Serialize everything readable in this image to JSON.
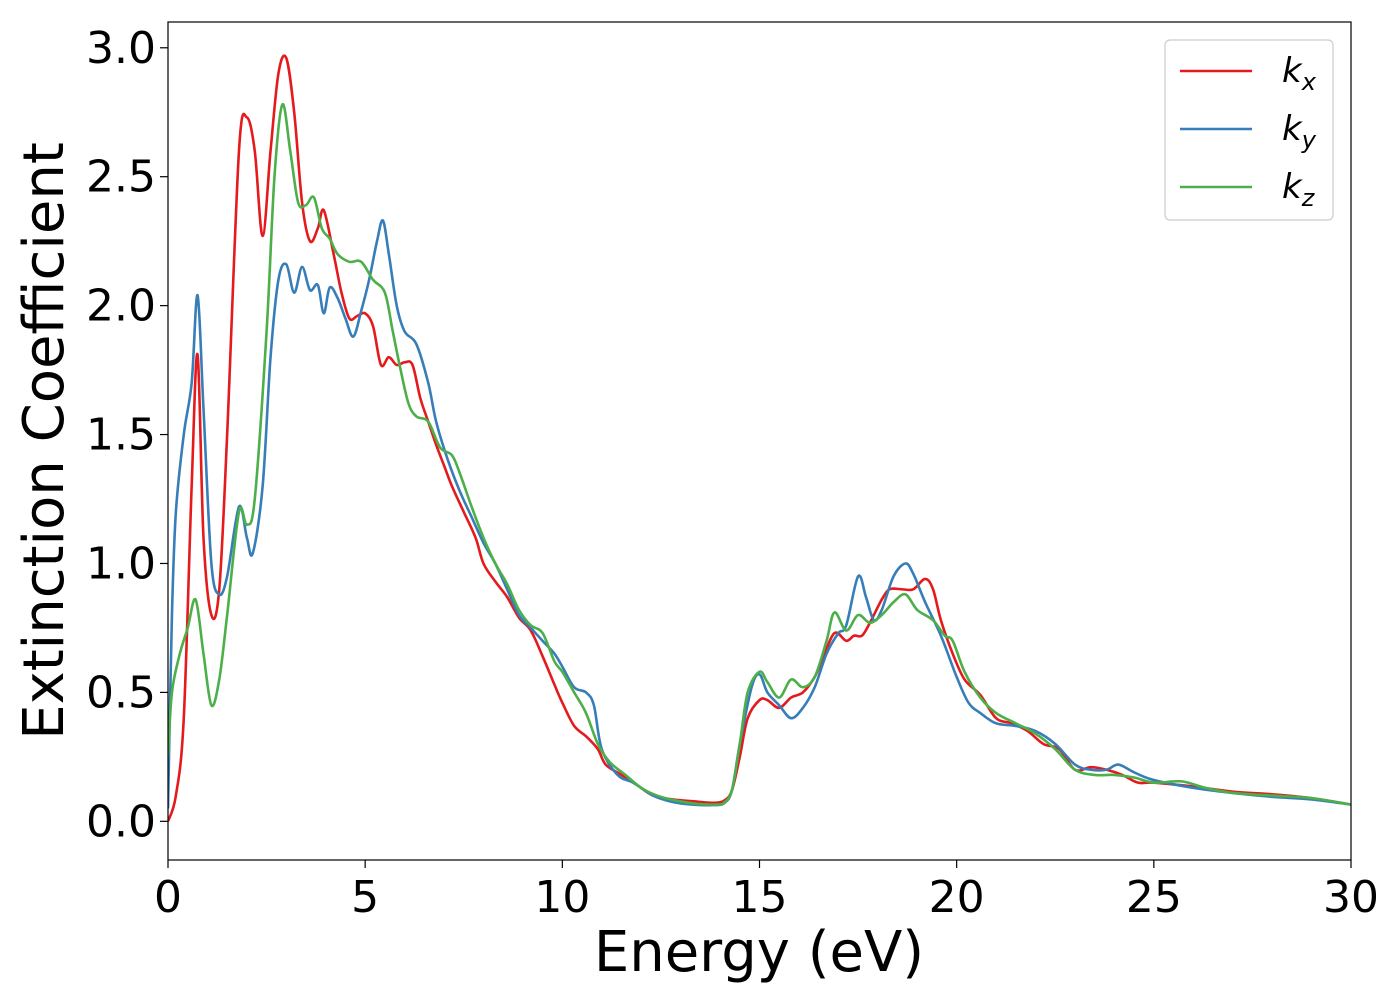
{
  "chart_data": {
    "type": "line",
    "title": "",
    "xlabel": "Energy (eV)",
    "ylabel": "Extinction Coefficient",
    "xlim": [
      0,
      30
    ],
    "ylim": [
      -0.15,
      3.1
    ],
    "xticks": [
      0,
      5,
      10,
      15,
      20,
      25,
      30
    ],
    "xtick_labels": [
      "0",
      "5",
      "10",
      "15",
      "20",
      "25",
      "30"
    ],
    "yticks": [
      0.0,
      0.5,
      1.0,
      1.5,
      2.0,
      2.5,
      3.0
    ],
    "ytick_labels": [
      "0.0",
      "0.5",
      "1.0",
      "1.5",
      "2.0",
      "2.5",
      "3.0"
    ],
    "grid": false,
    "legend_position": "top-right",
    "series": [
      {
        "name": "k",
        "subscript": "x",
        "color": "#e41a1c",
        "points": [
          [
            0,
            0.0
          ],
          [
            0.2,
            0.1
          ],
          [
            0.4,
            0.4
          ],
          [
            0.6,
            1.3
          ],
          [
            0.75,
            1.81
          ],
          [
            0.9,
            1.1
          ],
          [
            1.1,
            0.8
          ],
          [
            1.3,
            0.9
          ],
          [
            1.5,
            1.5
          ],
          [
            1.8,
            2.6
          ],
          [
            2.0,
            2.73
          ],
          [
            2.2,
            2.6
          ],
          [
            2.4,
            2.27
          ],
          [
            2.6,
            2.6
          ],
          [
            2.8,
            2.9
          ],
          [
            3.0,
            2.96
          ],
          [
            3.2,
            2.75
          ],
          [
            3.4,
            2.4
          ],
          [
            3.6,
            2.25
          ],
          [
            3.8,
            2.3
          ],
          [
            3.95,
            2.37
          ],
          [
            4.2,
            2.2
          ],
          [
            4.4,
            2.05
          ],
          [
            4.6,
            1.95
          ],
          [
            4.8,
            1.96
          ],
          [
            5.0,
            1.97
          ],
          [
            5.2,
            1.92
          ],
          [
            5.4,
            1.77
          ],
          [
            5.6,
            1.8
          ],
          [
            5.8,
            1.77
          ],
          [
            6.0,
            1.78
          ],
          [
            6.2,
            1.77
          ],
          [
            6.4,
            1.64
          ],
          [
            6.6,
            1.55
          ],
          [
            6.8,
            1.46
          ],
          [
            7.0,
            1.38
          ],
          [
            7.2,
            1.3
          ],
          [
            7.5,
            1.2
          ],
          [
            7.8,
            1.1
          ],
          [
            8.0,
            1.0
          ],
          [
            8.3,
            0.93
          ],
          [
            8.6,
            0.87
          ],
          [
            8.9,
            0.79
          ],
          [
            9.2,
            0.74
          ],
          [
            9.5,
            0.64
          ],
          [
            9.8,
            0.53
          ],
          [
            10.0,
            0.46
          ],
          [
            10.3,
            0.37
          ],
          [
            10.6,
            0.33
          ],
          [
            10.9,
            0.28
          ],
          [
            11.1,
            0.22
          ],
          [
            11.5,
            0.18
          ],
          [
            11.9,
            0.14
          ],
          [
            12.3,
            0.1
          ],
          [
            12.8,
            0.085
          ],
          [
            13.3,
            0.078
          ],
          [
            13.8,
            0.072
          ],
          [
            14.1,
            0.08
          ],
          [
            14.3,
            0.12
          ],
          [
            14.5,
            0.25
          ],
          [
            14.7,
            0.4
          ],
          [
            15.0,
            0.47
          ],
          [
            15.2,
            0.47
          ],
          [
            15.5,
            0.44
          ],
          [
            15.8,
            0.48
          ],
          [
            16.1,
            0.5
          ],
          [
            16.4,
            0.56
          ],
          [
            16.6,
            0.63
          ],
          [
            16.9,
            0.73
          ],
          [
            17.2,
            0.7
          ],
          [
            17.4,
            0.72
          ],
          [
            17.6,
            0.72
          ],
          [
            17.8,
            0.77
          ],
          [
            18.1,
            0.86
          ],
          [
            18.3,
            0.9
          ],
          [
            18.6,
            0.9
          ],
          [
            18.9,
            0.9
          ],
          [
            19.2,
            0.94
          ],
          [
            19.4,
            0.9
          ],
          [
            19.6,
            0.78
          ],
          [
            19.9,
            0.65
          ],
          [
            20.2,
            0.55
          ],
          [
            20.6,
            0.49
          ],
          [
            21.0,
            0.4
          ],
          [
            21.4,
            0.38
          ],
          [
            21.8,
            0.35
          ],
          [
            22.2,
            0.3
          ],
          [
            22.6,
            0.28
          ],
          [
            23.0,
            0.2
          ],
          [
            23.4,
            0.21
          ],
          [
            23.8,
            0.2
          ],
          [
            24.2,
            0.18
          ],
          [
            24.6,
            0.15
          ],
          [
            25.0,
            0.15
          ],
          [
            26.0,
            0.135
          ],
          [
            27.0,
            0.115
          ],
          [
            28.0,
            0.105
          ],
          [
            29.0,
            0.09
          ],
          [
            30.0,
            0.065
          ]
        ]
      },
      {
        "name": "k",
        "subscript": "y",
        "color": "#377eb8",
        "points": [
          [
            0,
            0.05
          ],
          [
            0.1,
            0.8
          ],
          [
            0.2,
            1.2
          ],
          [
            0.4,
            1.5
          ],
          [
            0.6,
            1.7
          ],
          [
            0.75,
            2.04
          ],
          [
            0.9,
            1.6
          ],
          [
            1.1,
            1.0
          ],
          [
            1.3,
            0.88
          ],
          [
            1.5,
            0.95
          ],
          [
            1.8,
            1.22
          ],
          [
            2.0,
            1.1
          ],
          [
            2.15,
            1.04
          ],
          [
            2.4,
            1.3
          ],
          [
            2.6,
            1.8
          ],
          [
            2.8,
            2.1
          ],
          [
            3.0,
            2.16
          ],
          [
            3.2,
            2.05
          ],
          [
            3.4,
            2.15
          ],
          [
            3.6,
            2.06
          ],
          [
            3.8,
            2.08
          ],
          [
            3.95,
            1.97
          ],
          [
            4.1,
            2.07
          ],
          [
            4.3,
            2.03
          ],
          [
            4.5,
            1.95
          ],
          [
            4.7,
            1.88
          ],
          [
            4.9,
            1.98
          ],
          [
            5.1,
            2.1
          ],
          [
            5.3,
            2.25
          ],
          [
            5.45,
            2.33
          ],
          [
            5.6,
            2.2
          ],
          [
            5.8,
            2.0
          ],
          [
            6.0,
            1.9
          ],
          [
            6.3,
            1.85
          ],
          [
            6.6,
            1.7
          ],
          [
            6.8,
            1.55
          ],
          [
            7.1,
            1.4
          ],
          [
            7.4,
            1.28
          ],
          [
            7.7,
            1.18
          ],
          [
            8.0,
            1.08
          ],
          [
            8.3,
            1.0
          ],
          [
            8.6,
            0.9
          ],
          [
            8.9,
            0.8
          ],
          [
            9.2,
            0.75
          ],
          [
            9.5,
            0.7
          ],
          [
            9.8,
            0.65
          ],
          [
            10.0,
            0.6
          ],
          [
            10.3,
            0.52
          ],
          [
            10.6,
            0.5
          ],
          [
            10.8,
            0.45
          ],
          [
            11.0,
            0.28
          ],
          [
            11.4,
            0.18
          ],
          [
            11.8,
            0.15
          ],
          [
            12.3,
            0.1
          ],
          [
            12.8,
            0.075
          ],
          [
            13.3,
            0.065
          ],
          [
            13.8,
            0.063
          ],
          [
            14.1,
            0.07
          ],
          [
            14.3,
            0.12
          ],
          [
            14.5,
            0.3
          ],
          [
            14.8,
            0.52
          ],
          [
            15.0,
            0.57
          ],
          [
            15.2,
            0.5
          ],
          [
            15.5,
            0.45
          ],
          [
            15.8,
            0.4
          ],
          [
            16.1,
            0.44
          ],
          [
            16.4,
            0.52
          ],
          [
            16.7,
            0.65
          ],
          [
            17.0,
            0.73
          ],
          [
            17.2,
            0.76
          ],
          [
            17.5,
            0.95
          ],
          [
            17.7,
            0.87
          ],
          [
            17.9,
            0.78
          ],
          [
            18.1,
            0.82
          ],
          [
            18.4,
            0.95
          ],
          [
            18.7,
            1.0
          ],
          [
            18.9,
            0.96
          ],
          [
            19.2,
            0.85
          ],
          [
            19.6,
            0.72
          ],
          [
            20.0,
            0.56
          ],
          [
            20.3,
            0.46
          ],
          [
            20.6,
            0.42
          ],
          [
            21.0,
            0.38
          ],
          [
            21.5,
            0.37
          ],
          [
            22.0,
            0.35
          ],
          [
            22.5,
            0.3
          ],
          [
            23.0,
            0.22
          ],
          [
            23.4,
            0.2
          ],
          [
            23.8,
            0.2
          ],
          [
            24.1,
            0.22
          ],
          [
            24.5,
            0.19
          ],
          [
            25.0,
            0.16
          ],
          [
            26.0,
            0.13
          ],
          [
            27.0,
            0.11
          ],
          [
            28.0,
            0.095
          ],
          [
            29.0,
            0.085
          ],
          [
            30.0,
            0.065
          ]
        ]
      },
      {
        "name": "k",
        "subscript": "z",
        "color": "#4daf4a",
        "points": [
          [
            0,
            0.25
          ],
          [
            0.1,
            0.5
          ],
          [
            0.3,
            0.65
          ],
          [
            0.5,
            0.75
          ],
          [
            0.7,
            0.86
          ],
          [
            0.9,
            0.65
          ],
          [
            1.1,
            0.45
          ],
          [
            1.3,
            0.55
          ],
          [
            1.5,
            0.8
          ],
          [
            1.8,
            1.2
          ],
          [
            2.0,
            1.15
          ],
          [
            2.2,
            1.25
          ],
          [
            2.5,
            1.9
          ],
          [
            2.7,
            2.5
          ],
          [
            2.9,
            2.78
          ],
          [
            3.1,
            2.6
          ],
          [
            3.3,
            2.4
          ],
          [
            3.5,
            2.39
          ],
          [
            3.7,
            2.42
          ],
          [
            3.9,
            2.3
          ],
          [
            4.1,
            2.26
          ],
          [
            4.3,
            2.2
          ],
          [
            4.6,
            2.17
          ],
          [
            4.9,
            2.17
          ],
          [
            5.2,
            2.1
          ],
          [
            5.5,
            2.05
          ],
          [
            5.7,
            1.9
          ],
          [
            5.9,
            1.75
          ],
          [
            6.1,
            1.62
          ],
          [
            6.3,
            1.57
          ],
          [
            6.6,
            1.55
          ],
          [
            6.9,
            1.45
          ],
          [
            7.2,
            1.42
          ],
          [
            7.4,
            1.35
          ],
          [
            7.7,
            1.22
          ],
          [
            8.0,
            1.1
          ],
          [
            8.3,
            1.0
          ],
          [
            8.6,
            0.92
          ],
          [
            8.9,
            0.82
          ],
          [
            9.2,
            0.76
          ],
          [
            9.5,
            0.73
          ],
          [
            9.8,
            0.62
          ],
          [
            10.0,
            0.58
          ],
          [
            10.3,
            0.5
          ],
          [
            10.6,
            0.42
          ],
          [
            10.9,
            0.3
          ],
          [
            11.2,
            0.23
          ],
          [
            11.6,
            0.18
          ],
          [
            12.0,
            0.13
          ],
          [
            12.4,
            0.1
          ],
          [
            12.9,
            0.08
          ],
          [
            13.4,
            0.068
          ],
          [
            13.9,
            0.065
          ],
          [
            14.1,
            0.072
          ],
          [
            14.3,
            0.12
          ],
          [
            14.5,
            0.3
          ],
          [
            14.7,
            0.5
          ],
          [
            15.0,
            0.58
          ],
          [
            15.2,
            0.54
          ],
          [
            15.5,
            0.48
          ],
          [
            15.8,
            0.55
          ],
          [
            16.1,
            0.52
          ],
          [
            16.4,
            0.56
          ],
          [
            16.7,
            0.7
          ],
          [
            16.9,
            0.81
          ],
          [
            17.2,
            0.74
          ],
          [
            17.5,
            0.8
          ],
          [
            17.8,
            0.77
          ],
          [
            18.1,
            0.8
          ],
          [
            18.4,
            0.85
          ],
          [
            18.7,
            0.88
          ],
          [
            19.0,
            0.82
          ],
          [
            19.4,
            0.78
          ],
          [
            19.7,
            0.72
          ],
          [
            19.9,
            0.7
          ],
          [
            20.2,
            0.58
          ],
          [
            20.6,
            0.48
          ],
          [
            21.0,
            0.42
          ],
          [
            21.5,
            0.38
          ],
          [
            22.0,
            0.34
          ],
          [
            22.5,
            0.28
          ],
          [
            23.0,
            0.2
          ],
          [
            23.5,
            0.18
          ],
          [
            24.0,
            0.18
          ],
          [
            24.5,
            0.17
          ],
          [
            25.0,
            0.15
          ],
          [
            25.7,
            0.155
          ],
          [
            26.3,
            0.13
          ],
          [
            27.0,
            0.11
          ],
          [
            28.0,
            0.1
          ],
          [
            29.0,
            0.09
          ],
          [
            30.0,
            0.065
          ]
        ]
      }
    ]
  }
}
